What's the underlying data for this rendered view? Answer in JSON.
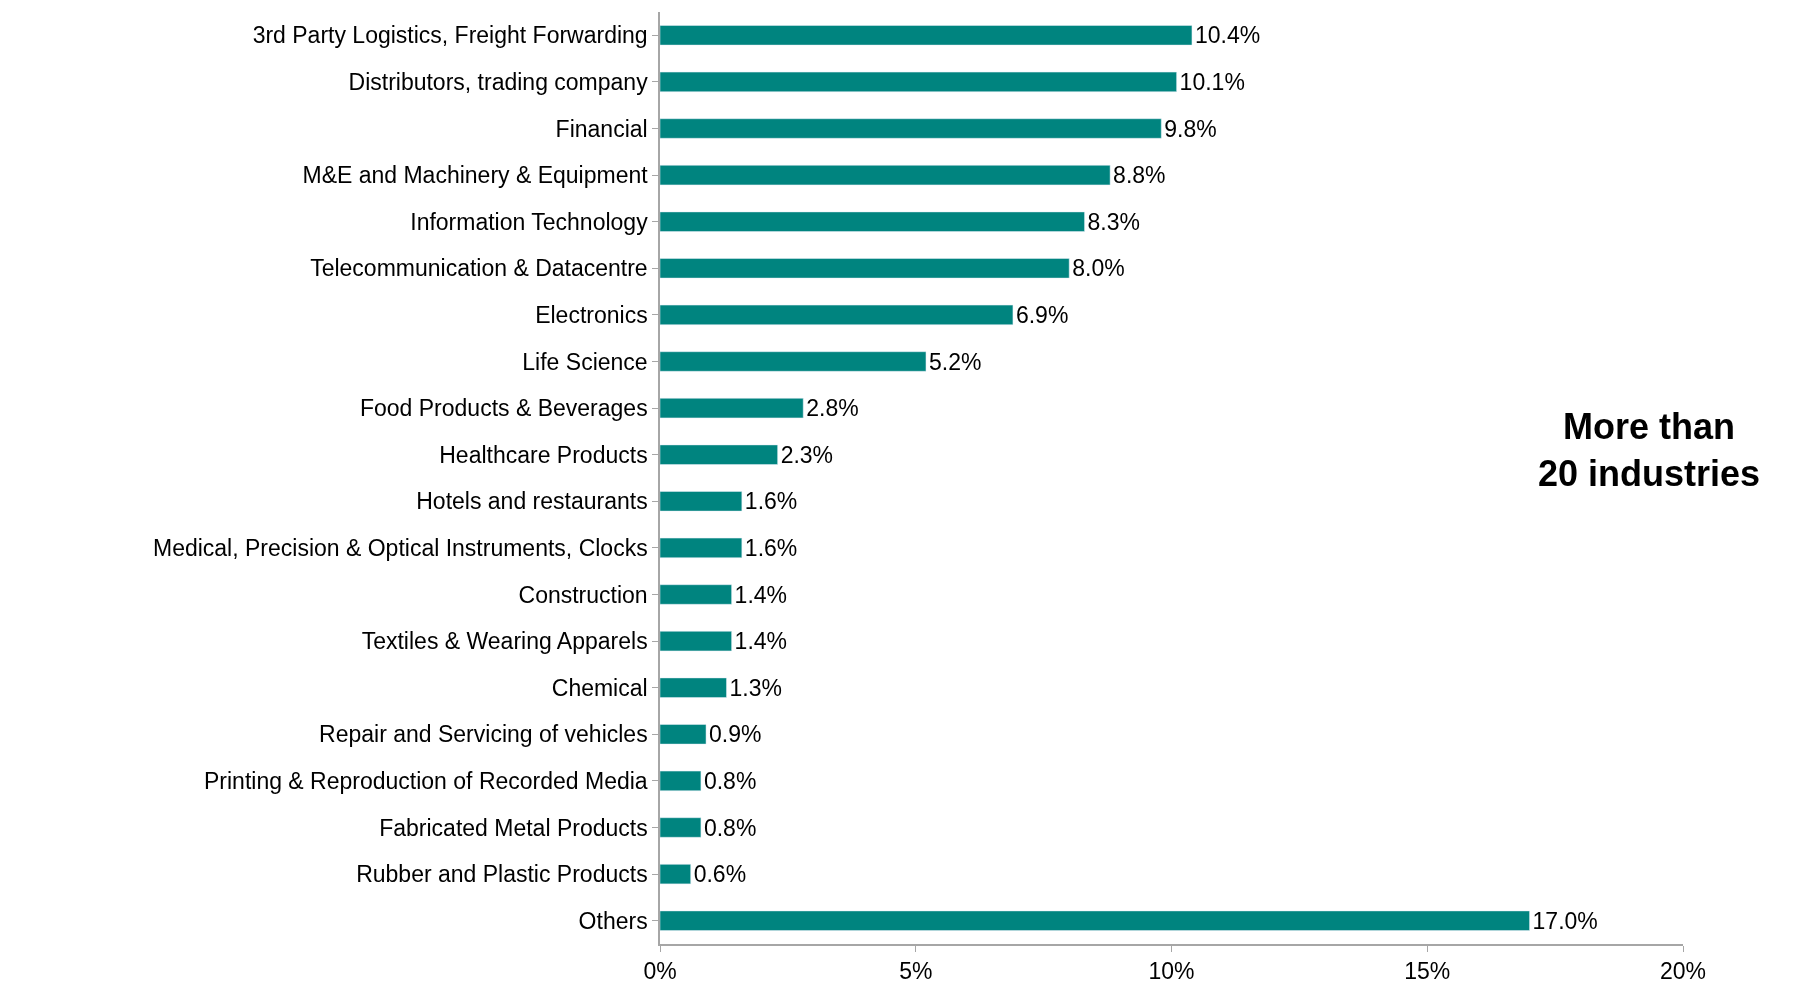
{
  "chart_data": {
    "type": "bar",
    "orientation": "horizontal",
    "categories": [
      "3rd Party Logistics, Freight Forwarding",
      "Distributors, trading company",
      "Financial",
      "M&E and Machinery & Equipment",
      "Information Technology",
      "Telecommunication & Datacentre",
      "Electronics",
      "Life Science",
      "Food Products & Beverages",
      "Healthcare Products",
      "Hotels and restaurants",
      "Medical, Precision & Optical Instruments, Clocks",
      "Construction",
      "Textiles & Wearing Apparels",
      "Chemical",
      "Repair and Servicing of vehicles",
      "Printing & Reproduction of Recorded Media",
      "Fabricated Metal Products",
      "Rubber and Plastic Products",
      "Others"
    ],
    "values": [
      10.4,
      10.1,
      9.8,
      8.8,
      8.3,
      8.0,
      6.9,
      5.2,
      2.8,
      2.3,
      1.6,
      1.6,
      1.4,
      1.4,
      1.3,
      0.9,
      0.8,
      0.8,
      0.6,
      17.0
    ],
    "value_labels": [
      "10.4%",
      "10.1%",
      "9.8%",
      "8.8%",
      "8.3%",
      "8.0%",
      "6.9%",
      "5.2%",
      "2.8%",
      "2.3%",
      "1.6%",
      "1.6%",
      "1.4%",
      "1.4%",
      "1.3%",
      "0.9%",
      "0.8%",
      "0.8%",
      "0.6%",
      "17.0%"
    ],
    "color": "#00847f",
    "xlim": [
      0,
      20
    ],
    "xticks": [
      {
        "value": 0,
        "label": "0%"
      },
      {
        "value": 5,
        "label": "5%"
      },
      {
        "value": 10,
        "label": "10%"
      },
      {
        "value": 15,
        "label": "15%"
      },
      {
        "value": 20,
        "label": "20%"
      }
    ],
    "annotations": [
      "More than\n20 industries"
    ],
    "legend": false
  }
}
